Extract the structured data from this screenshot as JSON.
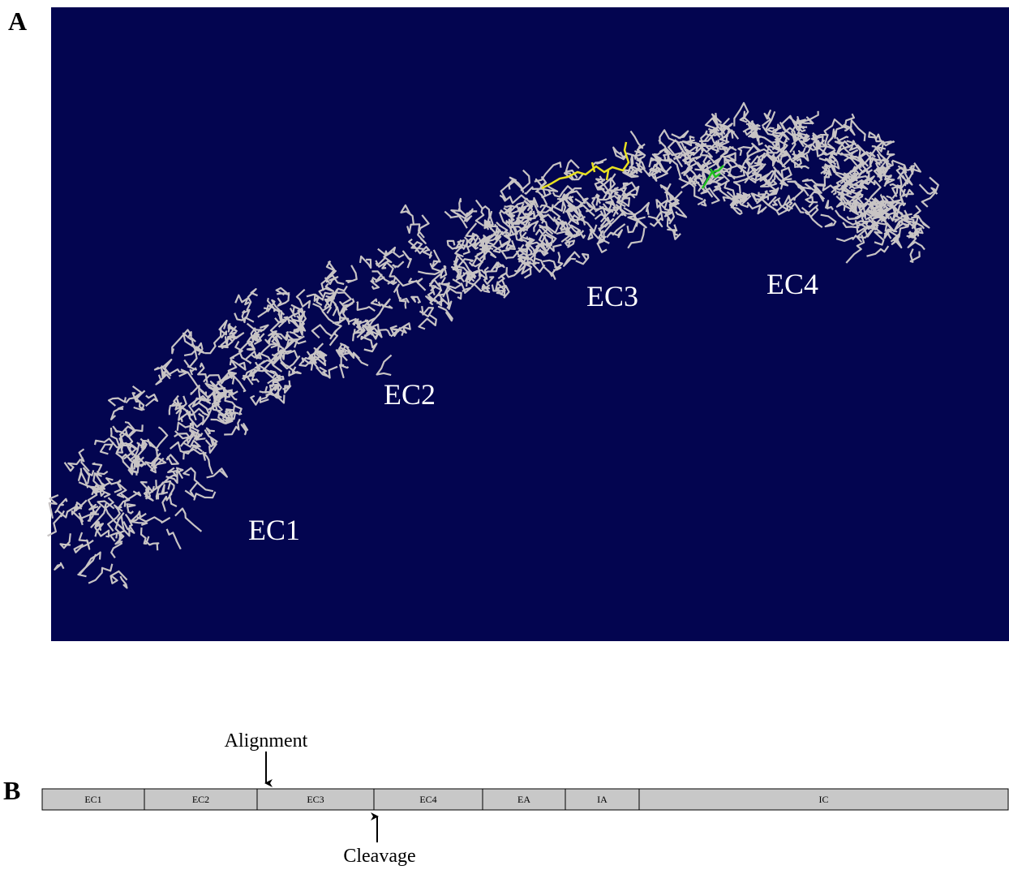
{
  "panels": [
    {
      "label": "A",
      "domain_labels": [
        "EC1",
        "EC2",
        "EC3",
        "EC4"
      ]
    },
    {
      "label": "B",
      "segments": [
        "EC1",
        "EC2",
        "EC3",
        "EC4",
        "EA",
        "IA",
        "IC"
      ],
      "alignment": "Alignment",
      "cleavage": "Cleavage"
    }
  ]
}
